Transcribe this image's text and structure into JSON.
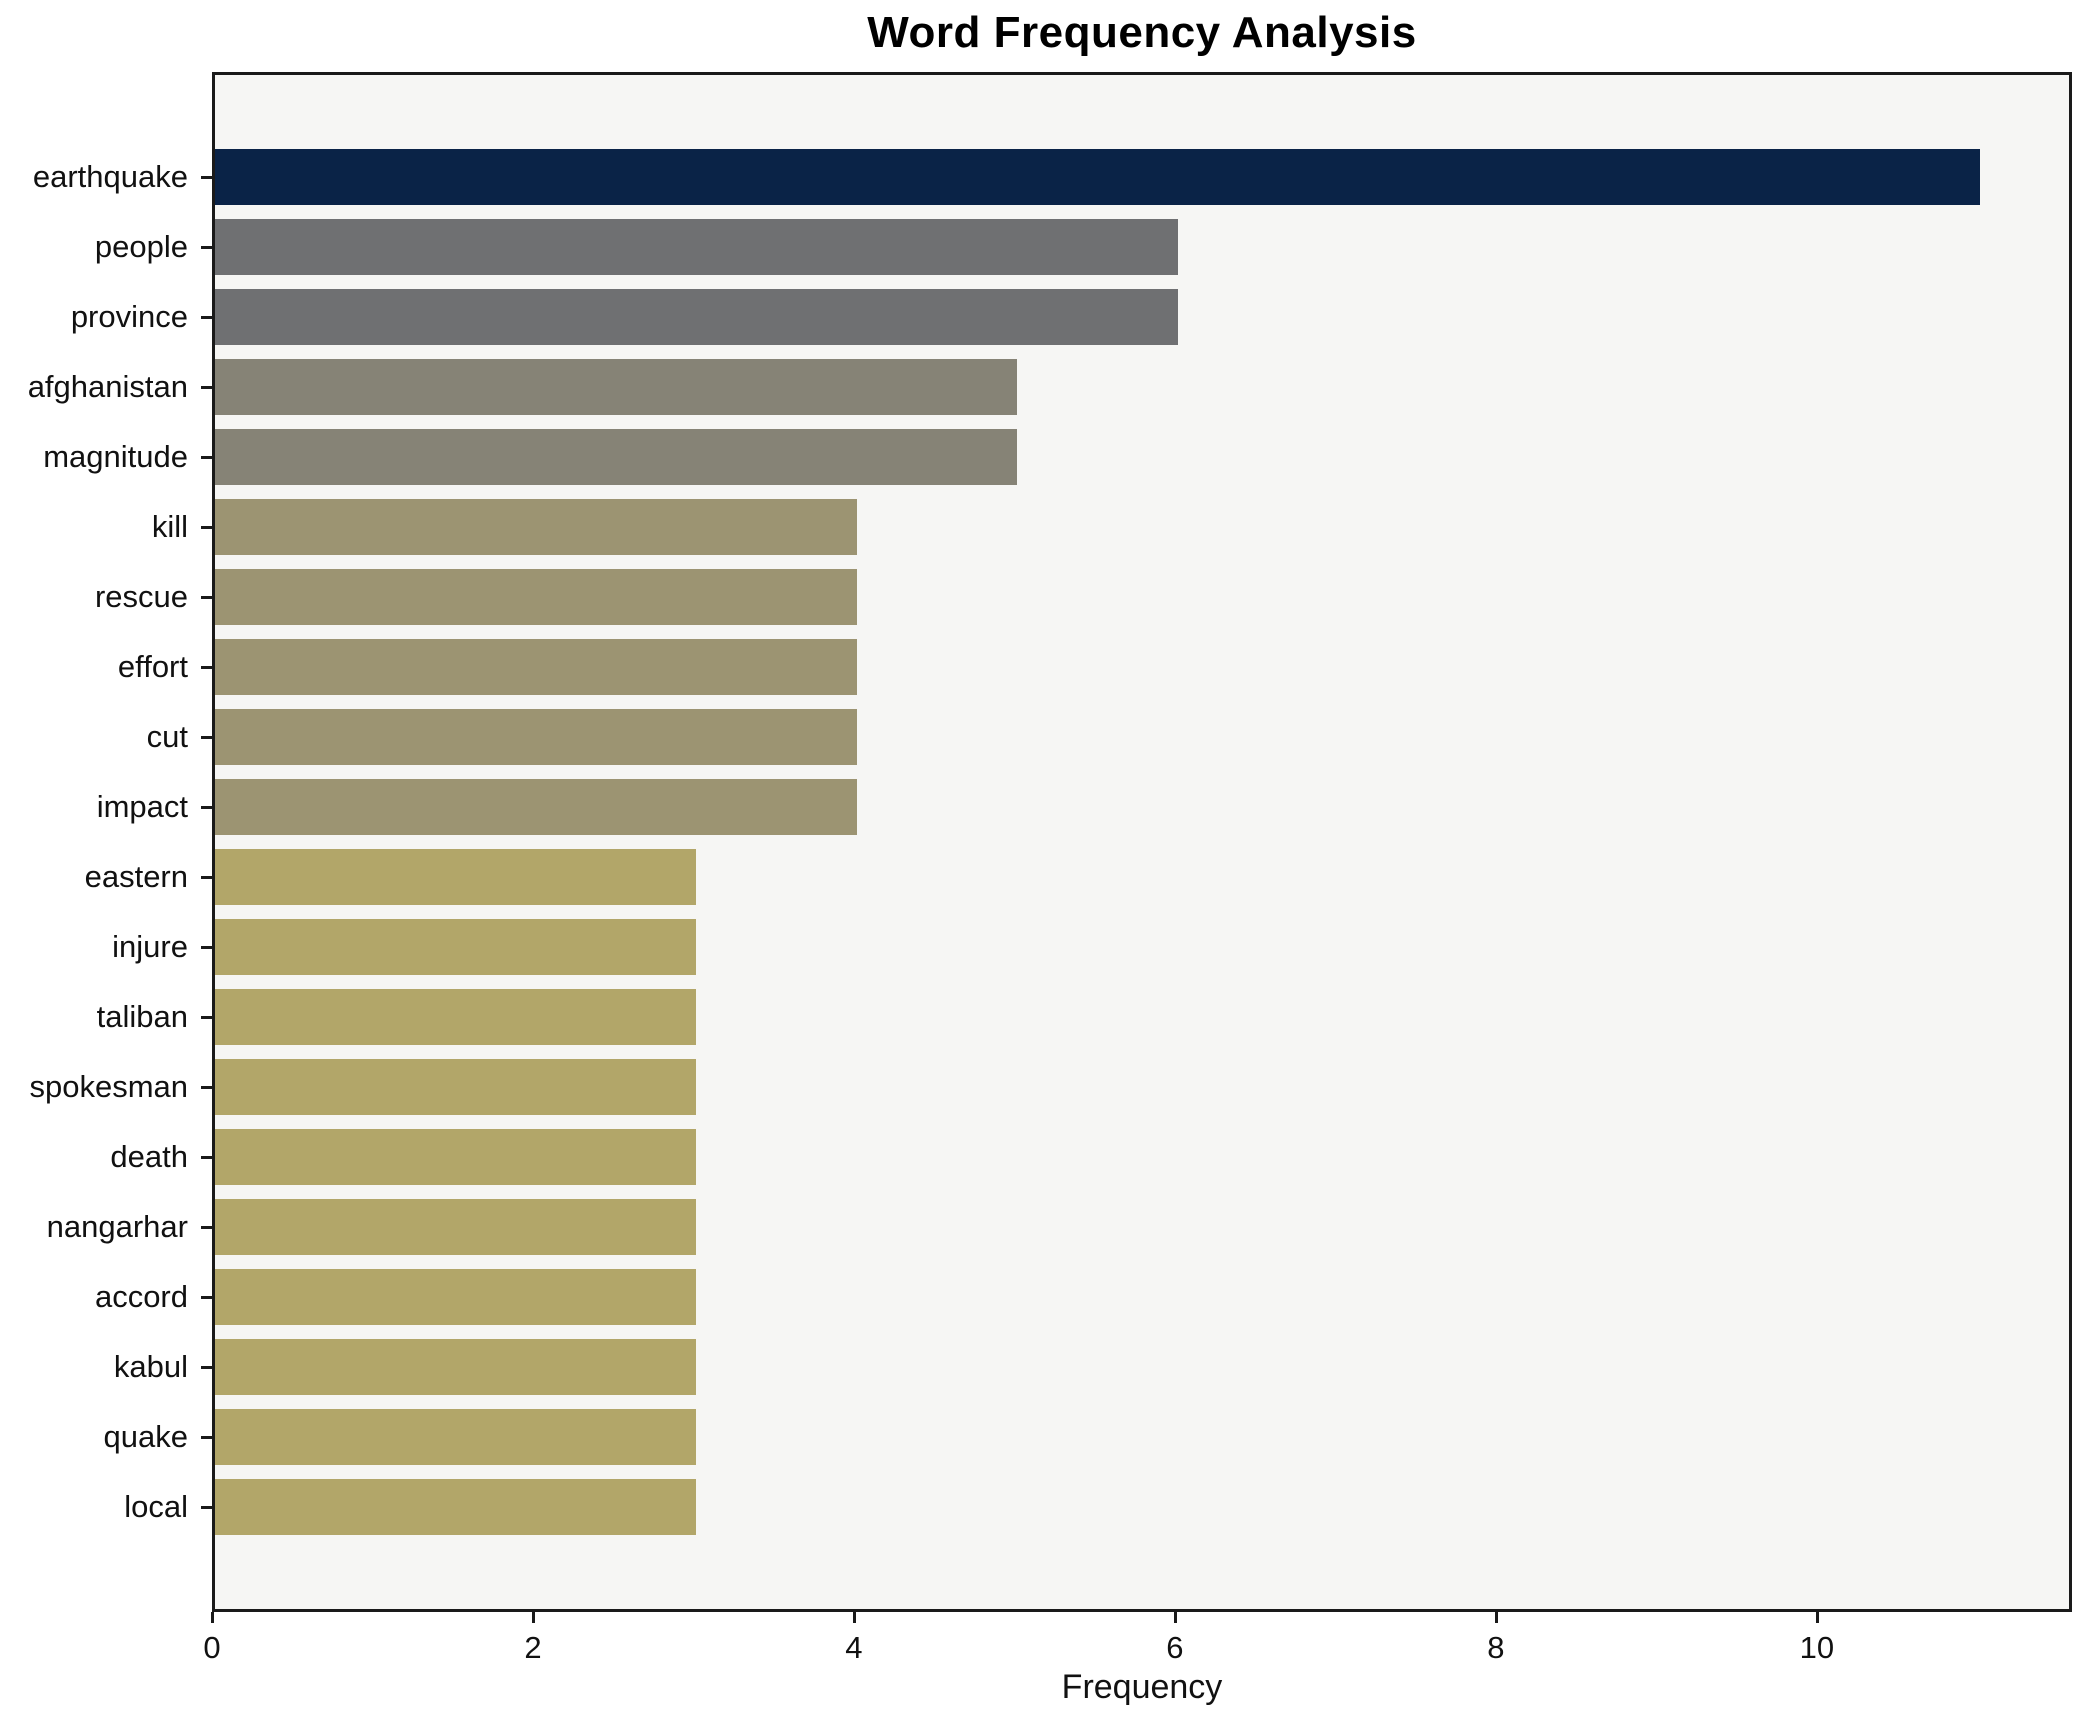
{
  "title": "Word Frequency Analysis",
  "chart_data": {
    "type": "bar",
    "orientation": "horizontal",
    "title": "Word Frequency Analysis",
    "xlabel": "Frequency",
    "ylabel": "",
    "categories": [
      "earthquake",
      "people",
      "province",
      "afghanistan",
      "magnitude",
      "kill",
      "rescue",
      "effort",
      "cut",
      "impact",
      "eastern",
      "injure",
      "taliban",
      "spokesman",
      "death",
      "nangarhar",
      "accord",
      "kabul",
      "quake",
      "local"
    ],
    "values": [
      11,
      6,
      6,
      5,
      5,
      4,
      4,
      4,
      4,
      4,
      3,
      3,
      3,
      3,
      3,
      3,
      3,
      3,
      3,
      3
    ],
    "bar_colors": [
      "#0a2347",
      "#6f7072",
      "#6f7072",
      "#868376",
      "#868376",
      "#9c9472",
      "#9c9472",
      "#9c9472",
      "#9c9472",
      "#9c9472",
      "#b2a669",
      "#b2a669",
      "#b2a669",
      "#b2a669",
      "#b2a669",
      "#b2a669",
      "#b2a669",
      "#b2a669",
      "#b2a669",
      "#b2a669"
    ],
    "xticks": [
      0,
      2,
      4,
      6,
      8,
      10
    ],
    "xlim": [
      0,
      11.59
    ],
    "grid": false,
    "legend": false,
    "plot_background": "#f6f6f4",
    "figure_background": "#ffffff",
    "spine_color": "#1a1a1a",
    "text_color": "#111111"
  }
}
